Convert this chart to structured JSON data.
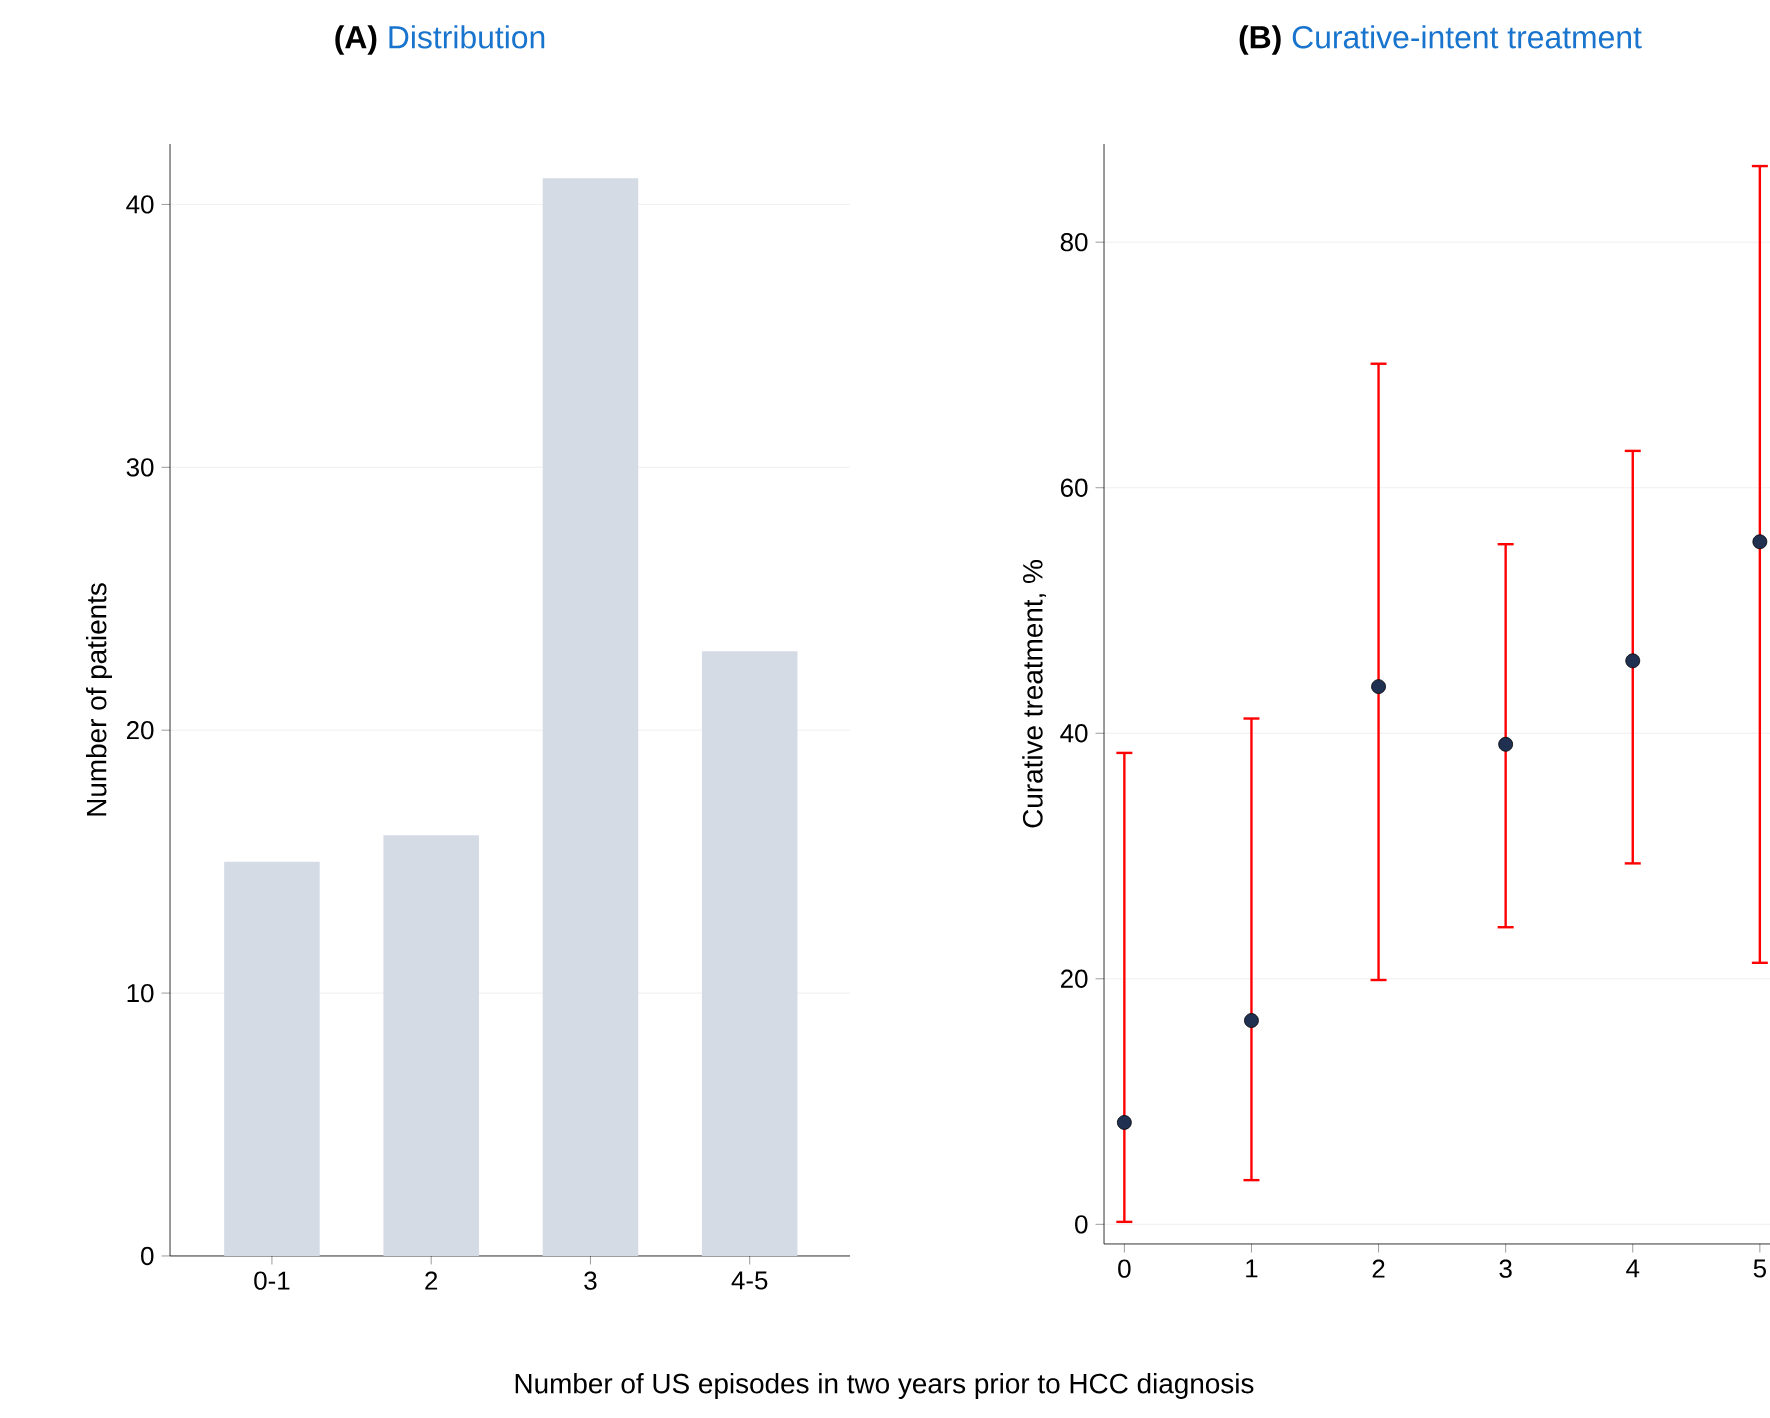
{
  "chart_data": [
    {
      "type": "bar",
      "title": "Distribution",
      "annotations": [
        "(A)"
      ],
      "xlabel": "Number of US episodes in two years prior to HCC diagnosis",
      "ylabel": "Number of patients",
      "categories": [
        "0-1",
        "2",
        "3",
        "4-5"
      ],
      "values": [
        15,
        16,
        41,
        23
      ],
      "color": "#d5dbe5",
      "ylim": [
        0,
        42.3
      ],
      "yticks": [
        0,
        10,
        20,
        30,
        40
      ],
      "grid": "y"
    },
    {
      "type": "scatter",
      "title": "Curative-intent treatment",
      "annotations": [
        "(B)"
      ],
      "ylabel": "Curative treatment, %",
      "x": [
        0,
        1,
        2,
        3,
        4,
        5
      ],
      "values": [
        8.3,
        16.6,
        43.8,
        39.1,
        45.9,
        55.6
      ],
      "errors": [
        [
          0.2,
          38.4
        ],
        [
          3.6,
          41.2
        ],
        [
          19.9,
          70.1
        ],
        [
          24.2,
          55.4
        ],
        [
          29.4,
          63
        ],
        [
          21.3,
          86.2
        ]
      ],
      "color": "#1f3050",
      "marker": "circle",
      "xlim": [
        -0.16,
        5.08
      ],
      "ylim": [
        -1.6,
        88
      ],
      "xticks": [
        0,
        1,
        2,
        3,
        4,
        5
      ],
      "yticks": [
        0,
        20,
        40,
        60,
        80
      ],
      "grid": "y"
    }
  ]
}
